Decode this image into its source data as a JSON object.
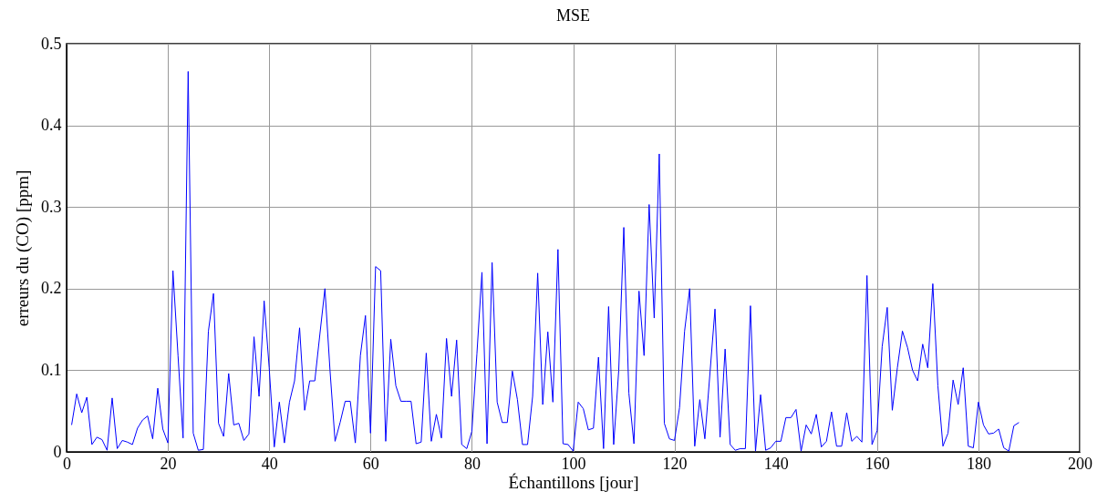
{
  "chart_data": {
    "type": "line",
    "title": "MSE",
    "xlabel": "Échantillons [jour]",
    "ylabel": "erreurs du (CO) [ppm]",
    "x": [
      1,
      2,
      3,
      4,
      5,
      6,
      7,
      8,
      9,
      10,
      11,
      12,
      13,
      14,
      15,
      16,
      17,
      18,
      19,
      20,
      21,
      22,
      23,
      24,
      25,
      26,
      27,
      28,
      29,
      30,
      31,
      32,
      33,
      34,
      35,
      36,
      37,
      38,
      39,
      40,
      41,
      42,
      43,
      44,
      45,
      46,
      47,
      48,
      49,
      50,
      51,
      52,
      53,
      54,
      55,
      56,
      57,
      58,
      59,
      60,
      61,
      62,
      63,
      64,
      65,
      66,
      67,
      68,
      69,
      70,
      71,
      72,
      73,
      74,
      75,
      76,
      77,
      78,
      79,
      80,
      81,
      82,
      83,
      84,
      85,
      86,
      87,
      88,
      89,
      90,
      91,
      92,
      93,
      94,
      95,
      96,
      97,
      98,
      99,
      100,
      101,
      102,
      103,
      104,
      105,
      106,
      107,
      108,
      109,
      110,
      111,
      112,
      113,
      114,
      115,
      116,
      117,
      118,
      119,
      120,
      121,
      122,
      123,
      124,
      125,
      126,
      127,
      128,
      129,
      130,
      131,
      132,
      133,
      134,
      135,
      136,
      137,
      138,
      139,
      140,
      141,
      142,
      143,
      144,
      145,
      146,
      147,
      148,
      149,
      150,
      151,
      152,
      153,
      154,
      155,
      156,
      157,
      158,
      159,
      160,
      161,
      162,
      163,
      164,
      165,
      166,
      167,
      168,
      169,
      170,
      171,
      172,
      173,
      174,
      175,
      176,
      177,
      178,
      179,
      180,
      181,
      182,
      183,
      184,
      185,
      186,
      187,
      188
    ],
    "series": [
      {
        "color": "#0000ff",
        "values": [
          0.033,
          0.071,
          0.048,
          0.067,
          0.009,
          0.018,
          0.015,
          0.002,
          0.066,
          0.004,
          0.014,
          0.012,
          0.009,
          0.029,
          0.039,
          0.044,
          0.016,
          0.078,
          0.028,
          0.011,
          0.222,
          0.118,
          0.017,
          0.466,
          0.023,
          0.002,
          0.003,
          0.148,
          0.194,
          0.035,
          0.019,
          0.096,
          0.033,
          0.035,
          0.014,
          0.022,
          0.141,
          0.068,
          0.185,
          0.103,
          0.006,
          0.061,
          0.011,
          0.061,
          0.087,
          0.152,
          0.051,
          0.087,
          0.087,
          0.144,
          0.2,
          0.1,
          0.013,
          0.036,
          0.062,
          0.062,
          0.011,
          0.118,
          0.167,
          0.023,
          0.227,
          0.222,
          0.013,
          0.138,
          0.081,
          0.062,
          0.062,
          0.062,
          0.01,
          0.012,
          0.121,
          0.013,
          0.046,
          0.017,
          0.139,
          0.068,
          0.137,
          0.009,
          0.004,
          0.025,
          0.12,
          0.22,
          0.01,
          0.232,
          0.061,
          0.036,
          0.036,
          0.099,
          0.064,
          0.009,
          0.009,
          0.068,
          0.219,
          0.058,
          0.147,
          0.061,
          0.248,
          0.01,
          0.009,
          0.001,
          0.061,
          0.053,
          0.027,
          0.029,
          0.116,
          0.004,
          0.178,
          0.009,
          0.1,
          0.275,
          0.072,
          0.01,
          0.197,
          0.118,
          0.303,
          0.164,
          0.365,
          0.035,
          0.016,
          0.014,
          0.054,
          0.148,
          0.2,
          0.007,
          0.064,
          0.016,
          0.096,
          0.175,
          0.018,
          0.126,
          0.009,
          0.002,
          0.004,
          0.004,
          0.179,
          0.001,
          0.07,
          0.002,
          0.005,
          0.013,
          0.013,
          0.042,
          0.042,
          0.052,
          0.001,
          0.033,
          0.022,
          0.046,
          0.006,
          0.013,
          0.049,
          0.007,
          0.007,
          0.048,
          0.013,
          0.019,
          0.012,
          0.216,
          0.009,
          0.026,
          0.129,
          0.177,
          0.051,
          0.103,
          0.148,
          0.128,
          0.1,
          0.087,
          0.132,
          0.103,
          0.206,
          0.081,
          0.007,
          0.023,
          0.088,
          0.058,
          0.103,
          0.007,
          0.005,
          0.061,
          0.033,
          0.022,
          0.023,
          0.028,
          0.005,
          0.001,
          0.032,
          0.036
        ]
      }
    ],
    "xlim": [
      0,
      200
    ],
    "xticks": [
      0,
      20,
      40,
      60,
      80,
      100,
      120,
      140,
      160,
      180,
      200
    ],
    "ylim": [
      0,
      0.5
    ],
    "yticks": [
      0,
      0.1,
      0.2,
      0.3,
      0.4,
      0.5
    ],
    "grid": true
  }
}
